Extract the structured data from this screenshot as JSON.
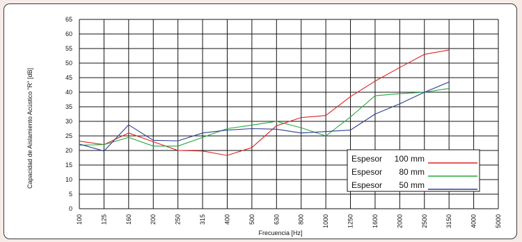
{
  "chart_data": {
    "type": "line",
    "xlabel": "Frecuencia [Hz]",
    "ylabel": "Capacidad de Aislamiento Acústico \"R\" [dB]",
    "x_categories": [
      "100",
      "125",
      "160",
      "200",
      "250",
      "315",
      "400",
      "500",
      "630",
      "800",
      "1000",
      "1250",
      "1600",
      "2000",
      "2500",
      "3150",
      "4000",
      "5000"
    ],
    "ylim": [
      0,
      65
    ],
    "yticks": [
      0,
      5,
      10,
      15,
      20,
      25,
      30,
      35,
      40,
      45,
      50,
      55,
      60,
      65
    ],
    "grid": true,
    "legend_position": "lower-right",
    "series": [
      {
        "name": "Espesor",
        "thickness": "100 mm",
        "color": "#e02020",
        "values": [
          23.2,
          22.0,
          26.0,
          23.0,
          20.0,
          19.8,
          18.3,
          21.0,
          28.5,
          31.3,
          32.0,
          38.5,
          43.8,
          48.5,
          53.0,
          54.5
        ]
      },
      {
        "name": "Espesor",
        "thickness": "80 mm",
        "color": "#22a83a",
        "values": [
          21.8,
          22.0,
          24.5,
          21.5,
          21.5,
          24.5,
          27.5,
          28.7,
          30.0,
          27.8,
          25.0,
          31.5,
          38.8,
          39.5,
          40.0,
          41.3
        ]
      },
      {
        "name": "Espesor",
        "thickness": "50 mm",
        "color": "#2a3d8f",
        "values": [
          22.2,
          19.8,
          28.8,
          23.5,
          23.3,
          26.0,
          27.0,
          27.5,
          27.3,
          26.0,
          26.5,
          27.0,
          32.5,
          36.0,
          40.0,
          43.5
        ]
      }
    ]
  }
}
